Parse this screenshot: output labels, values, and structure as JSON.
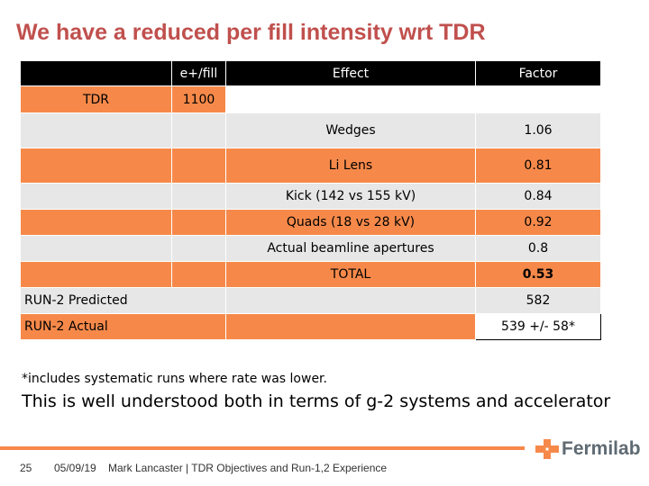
{
  "title": "We have a reduced per fill intensity wrt TDR",
  "table": {
    "header": {
      "col1": "",
      "col2": "e+/fill",
      "col3": "Effect",
      "col4": "Factor"
    },
    "tdr_row": {
      "label": "TDR",
      "value": "1100"
    },
    "effects": [
      {
        "effect": "Wedges",
        "factor": "1.06"
      },
      {
        "effect": "Li Lens",
        "factor": "0.81"
      },
      {
        "effect": "Kick (142 vs 155 kV)",
        "factor": "0.84"
      },
      {
        "effect": "Quads (18 vs 28 kV)",
        "factor": "0.92"
      },
      {
        "effect": "Actual beamline apertures",
        "factor": "0.8"
      },
      {
        "effect": "TOTAL",
        "factor": "0.53"
      }
    ],
    "predicted": {
      "label": "RUN-2 Predicted",
      "value": "582"
    },
    "actual": {
      "label": "RUN-2 Actual",
      "value": "539 +/- 58*"
    }
  },
  "footnote": "*includes systematic runs where rate was lower.",
  "statement": "This is well understood both in terms of g-2 systems and accelerator",
  "footer": {
    "page": "25",
    "date": "05/09/19",
    "author": "Mark Lancaster | TDR Objectives and Run-1,2 Experience",
    "logo": "Fermilab"
  },
  "colors": {
    "title": "#c0504d",
    "orange": "#f6894a",
    "grey": "#e7e7e7",
    "header": "#000000"
  }
}
